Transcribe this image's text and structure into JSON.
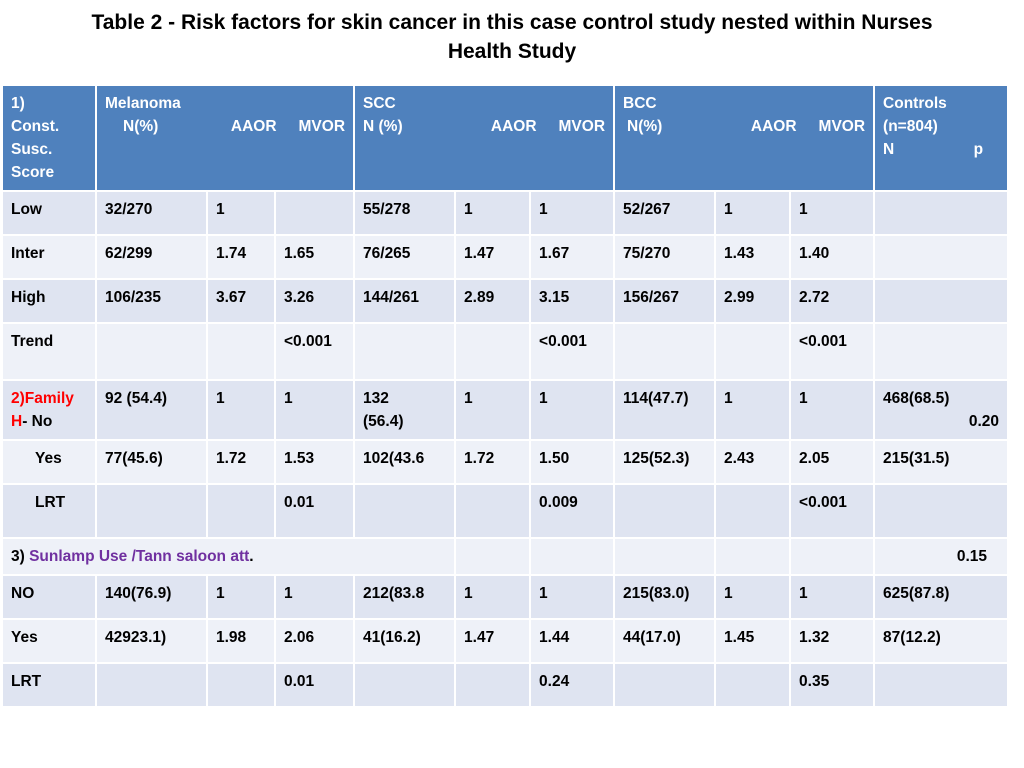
{
  "title_line1": "Table 2 - Risk factors for skin cancer in this case control study nested within Nurses",
  "title_line2": "Health Study",
  "header": {
    "c1": [
      "1)",
      "Const.",
      "Susc.",
      "Score"
    ],
    "melanoma": {
      "name": "Melanoma",
      "n": "N(%)",
      "aaor": "AAOR",
      "mvor": "MVOR"
    },
    "scc": {
      "name": "SCC",
      "n": "N (%)",
      "aaor": "AAOR",
      "mvor": "MVOR"
    },
    "bcc": {
      "name": "BCC",
      "n": "N(%)",
      "aaor": "AAOR",
      "mvor": "MVOR"
    },
    "controls": {
      "name": "Controls",
      "n": "(n=804)",
      "nlabel": "N",
      "p": "p"
    }
  },
  "rows": {
    "low": [
      "Low",
      "32/270",
      "1",
      "",
      "55/278",
      "1",
      "1",
      "52/267",
      "1",
      "1",
      ""
    ],
    "inter": [
      "Inter",
      "62/299",
      "1.74",
      "1.65",
      "76/265",
      "1.47",
      "1.67",
      "75/270",
      "1.43",
      "1.40",
      ""
    ],
    "high": [
      "High",
      "106/235",
      "3.67",
      "3.26",
      "144/261",
      "2.89",
      "3.15",
      "156/267",
      "2.99",
      "2.72",
      ""
    ],
    "trend": [
      "Trend",
      "",
      "",
      "<0.001",
      "",
      "",
      "<0.001",
      "",
      "",
      "<0.001",
      ""
    ],
    "family_no": [
      "",
      "92 (54.4)",
      "1",
      "1",
      "132",
      "1",
      "1",
      "114(47.7)",
      "1",
      "1",
      "468(68.5)"
    ],
    "family_no_extra": {
      "scc2": "(56.4)",
      "p": "0.20"
    },
    "family_label": {
      "a": "2)Family",
      "b": "H",
      "c": "-  No"
    },
    "family_yes": [
      "Yes",
      "77(45.6)",
      "1.72",
      "1.53",
      "102(43.6",
      "1.72",
      "1.50",
      "125(52.3)",
      "2.43",
      "2.05",
      "215(31.5)"
    ],
    "family_lrt": [
      "LRT",
      "",
      "",
      "0.01",
      "",
      "",
      "0.009",
      "",
      "",
      "<0.001",
      ""
    ],
    "sunlamp": {
      "prefix": "3) ",
      "label": "Sunlamp  Use /Tann saloon  att",
      "suffix": ".",
      "p": "0.15"
    },
    "sun_no": [
      "NO",
      "140(76.9)",
      "1",
      "1",
      "212(83.8",
      "1",
      "1",
      "215(83.0)",
      "1",
      "1",
      "625(87.8)"
    ],
    "sun_yes": [
      "Yes",
      "42923.1)",
      "1.98",
      "2.06",
      "41(16.2)",
      "1.47",
      "1.44",
      "44(17.0)",
      "1.45",
      "1.32",
      "87(12.2)"
    ],
    "sun_lrt": [
      "LRT",
      "",
      "",
      "0.01",
      "",
      "",
      "0.24",
      "",
      "",
      "0.35",
      ""
    ]
  }
}
